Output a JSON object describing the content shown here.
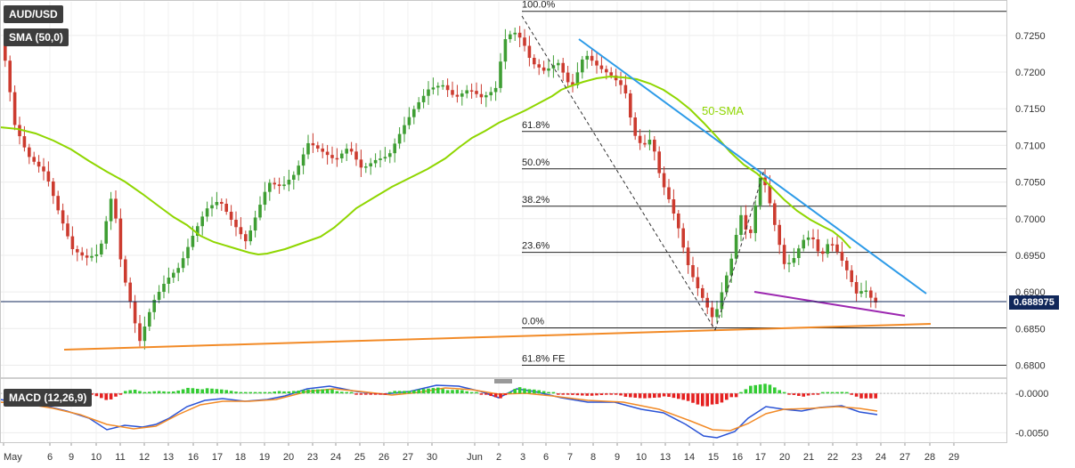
{
  "chart_data": {
    "type": "candlestick",
    "symbol": "AUD/USD",
    "indicator_label": "SMA (50,0)",
    "macd_label": "MACD (12,26,9)",
    "current_price": "0.688975",
    "sma_annotation": "50-SMA",
    "y_ticks": [
      "0.7250",
      "0.7200",
      "0.7150",
      "0.7100",
      "0.7050",
      "0.7000",
      "0.6950",
      "0.6900",
      "0.6850",
      "0.6800"
    ],
    "macd_ticks": [
      "-0.0000",
      "-0.0050"
    ],
    "x_ticks": [
      "May",
      "6",
      "9",
      "10",
      "11",
      "12",
      "13",
      "16",
      "17",
      "18",
      "19",
      "20",
      "23",
      "24",
      "25",
      "26",
      "27",
      "30",
      "Jun",
      "2",
      "3",
      "6",
      "7",
      "8",
      "9",
      "10",
      "13",
      "14",
      "15",
      "16",
      "17",
      "20",
      "21",
      "22",
      "23",
      "24",
      "27",
      "28",
      "29"
    ],
    "fib_levels": [
      {
        "label": "100.0%",
        "price": 0.7283
      },
      {
        "label": "61.8%",
        "price": 0.7119
      },
      {
        "label": "50.0%",
        "price": 0.7068
      },
      {
        "label": "38.2%",
        "price": 0.7017
      },
      {
        "label": "23.6%",
        "price": 0.6954
      },
      {
        "label": "0.0%",
        "price": 0.6851
      },
      {
        "label": "61.8% FE",
        "price": 0.68
      }
    ],
    "ylim": [
      0.6786,
      0.7296
    ],
    "macd_ylim": [
      -0.0062,
      0.0016
    ],
    "colors": {
      "bull": "#3f9e34",
      "bear": "#cc3b2f",
      "sma": "#8fd600",
      "trend_blue": "#2d9be8",
      "trend_purple": "#9c27b0",
      "trend_orange": "#f28a26",
      "macd_line": "#2a53d6",
      "signal_line": "#f28a26",
      "hist_pos": "#33cc33",
      "hist_neg": "#e52020"
    }
  }
}
